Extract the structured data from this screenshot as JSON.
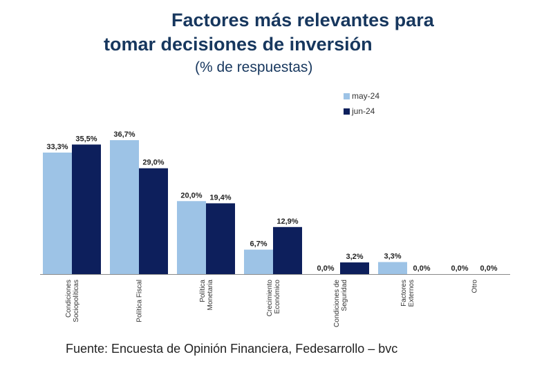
{
  "header": {
    "title_line1": "Factores más relevantes para",
    "title_line2": "tomar decisiones de inversión",
    "subtitle": "(% de respuestas)"
  },
  "legend": {
    "items": [
      {
        "label": "may-24",
        "color": "#9dc3e6"
      },
      {
        "label": "jun-24",
        "color": "#0d1f5c"
      }
    ]
  },
  "footer": {
    "source": "Fuente: Encuesta de Opinión Financiera, Fedesarrollo – bvc"
  },
  "chart_data": {
    "type": "bar",
    "title": "Factores más relevantes para tomar decisiones de inversión",
    "subtitle": "(% de respuestas)",
    "xlabel": "",
    "ylabel": "",
    "ylim": [
      0,
      40
    ],
    "grid": false,
    "legend_position": "top-right",
    "categories": [
      [
        "Condiciones",
        "Sociopolíticas"
      ],
      [
        "Política Fiscal"
      ],
      [
        "Política",
        "Monetaria"
      ],
      [
        "Crecimiento",
        "Económico"
      ],
      [
        "Condiciones de",
        "Seguridad"
      ],
      [
        "Factores",
        "Externos"
      ],
      [
        "Otro"
      ]
    ],
    "series": [
      {
        "name": "may-24",
        "color": "#9dc3e6",
        "values": [
          33.3,
          36.7,
          20.0,
          6.7,
          0.0,
          3.3,
          0.0
        ],
        "labels": [
          "33,3%",
          "36,7%",
          "20,0%",
          "6,7%",
          "0,0%",
          "3,3%",
          "0,0%"
        ]
      },
      {
        "name": "jun-24",
        "color": "#0d1f5c",
        "values": [
          35.5,
          29.0,
          19.4,
          12.9,
          3.2,
          0.0,
          0.0
        ],
        "labels": [
          "35,5%",
          "29,0%",
          "19,4%",
          "12,9%",
          "3,2%",
          "0,0%",
          "0,0%"
        ]
      }
    ]
  }
}
